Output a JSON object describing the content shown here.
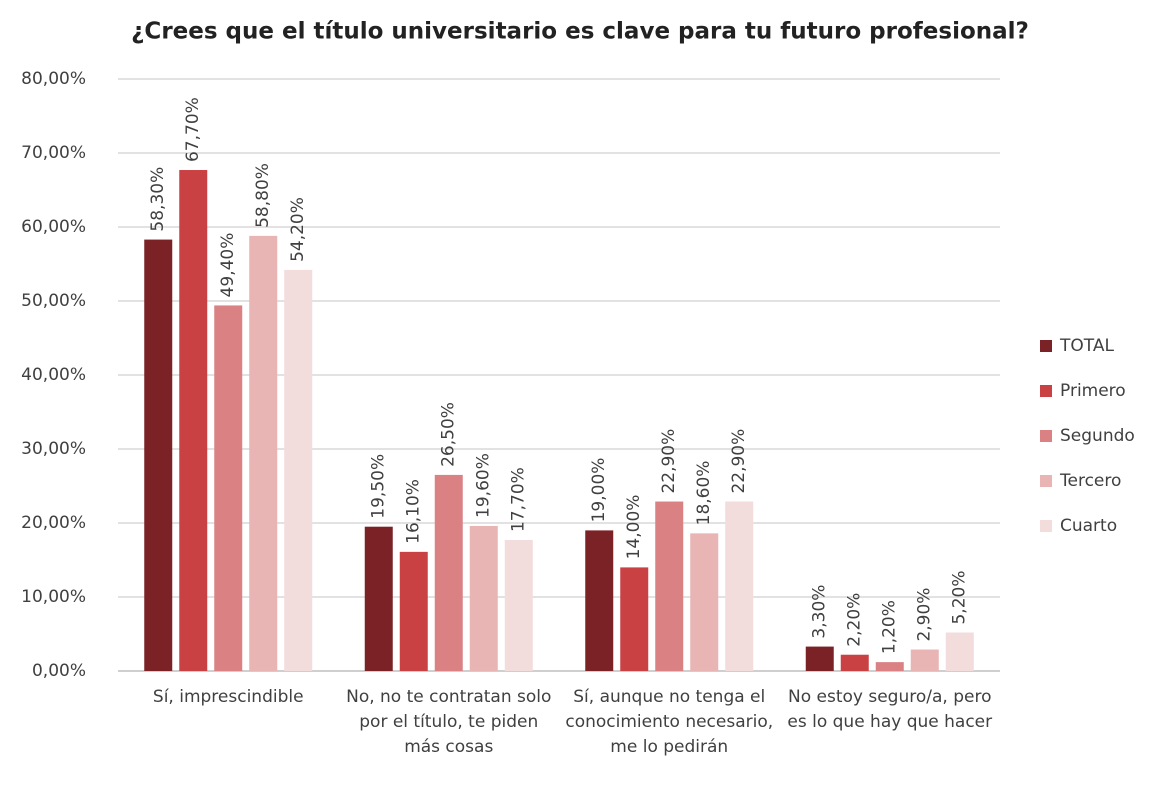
{
  "chart_data": {
    "type": "bar",
    "title": "¿Crees que el título universitario es clave para tu futuro profesional?",
    "categories": [
      "Sí, imprescindible",
      "No, no te contratan solo por el título, te piden más cosas",
      "Sí, aunque no tenga el conocimiento necesario, me lo pedirán",
      "No estoy seguro/a, pero es lo que hay que hacer"
    ],
    "series": [
      {
        "name": "TOTAL",
        "color": "#7b2226",
        "values": [
          58.3,
          19.5,
          19.0,
          3.3
        ],
        "value_labels": [
          "58,30%",
          "19,50%",
          "19,00%",
          "3,30%"
        ]
      },
      {
        "name": "Primero",
        "color": "#c94143",
        "values": [
          67.7,
          16.1,
          14.0,
          2.2
        ],
        "value_labels": [
          "67,70%",
          "16,10%",
          "14,00%",
          "2,20%"
        ]
      },
      {
        "name": "Segundo",
        "color": "#d98183",
        "values": [
          49.4,
          26.5,
          22.9,
          1.2
        ],
        "value_labels": [
          "49,40%",
          "26,50%",
          "22,90%",
          "1,20%"
        ]
      },
      {
        "name": "Tercero",
        "color": "#e8b4b4",
        "values": [
          58.8,
          19.6,
          18.6,
          2.9
        ],
        "value_labels": [
          "58,80%",
          "19,60%",
          "18,60%",
          "2,90%"
        ]
      },
      {
        "name": "Cuarto",
        "color": "#f3dcdc",
        "values": [
          54.2,
          17.7,
          22.9,
          5.2
        ],
        "value_labels": [
          "54,20%",
          "17,70%",
          "22,90%",
          "5,20%"
        ]
      }
    ],
    "ylim": [
      0,
      80
    ],
    "yticks": [
      {
        "value": 0,
        "label": "0,00%"
      },
      {
        "value": 10,
        "label": "10,00%"
      },
      {
        "value": 20,
        "label": "20,00%"
      },
      {
        "value": 30,
        "label": "30,00%"
      },
      {
        "value": 40,
        "label": "40,00%"
      },
      {
        "value": 50,
        "label": "50,00%"
      },
      {
        "value": 60,
        "label": "60,00%"
      },
      {
        "value": 70,
        "label": "70,00%"
      },
      {
        "value": 80,
        "label": "80,00%"
      }
    ],
    "grid": true,
    "legend": "right"
  }
}
